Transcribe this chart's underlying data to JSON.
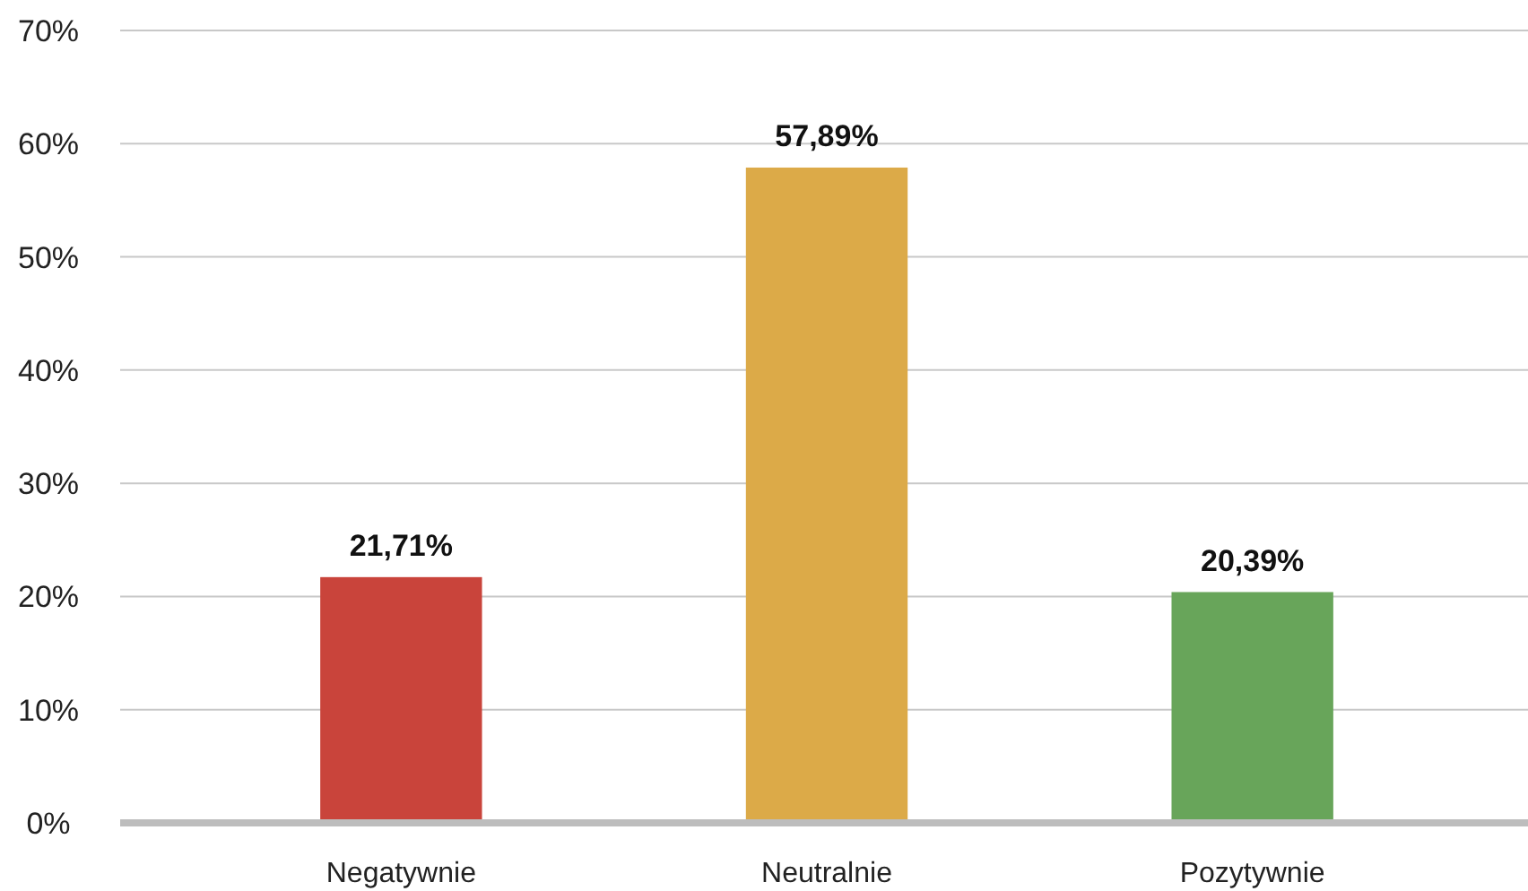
{
  "chart_data": {
    "type": "bar",
    "categories": [
      "Negatywnie",
      "Neutralnie",
      "Pozytywnie"
    ],
    "values": [
      21.71,
      57.89,
      20.39
    ],
    "colors": [
      "#c9443b",
      "#dcaa48",
      "#68a55a"
    ],
    "value_labels": [
      "21,71%",
      "57,89%",
      "20,39%"
    ],
    "ylim": [
      0,
      70
    ],
    "yticks": [
      {
        "value": 0,
        "label": "0%"
      },
      {
        "value": 10,
        "label": "10%"
      },
      {
        "value": 20,
        "label": "20%"
      },
      {
        "value": 30,
        "label": "30%"
      },
      {
        "value": 40,
        "label": "40%"
      },
      {
        "value": 50,
        "label": "50%"
      },
      {
        "value": 60,
        "label": "60%"
      },
      {
        "value": 70,
        "label": "70%"
      }
    ],
    "grid": "y"
  }
}
